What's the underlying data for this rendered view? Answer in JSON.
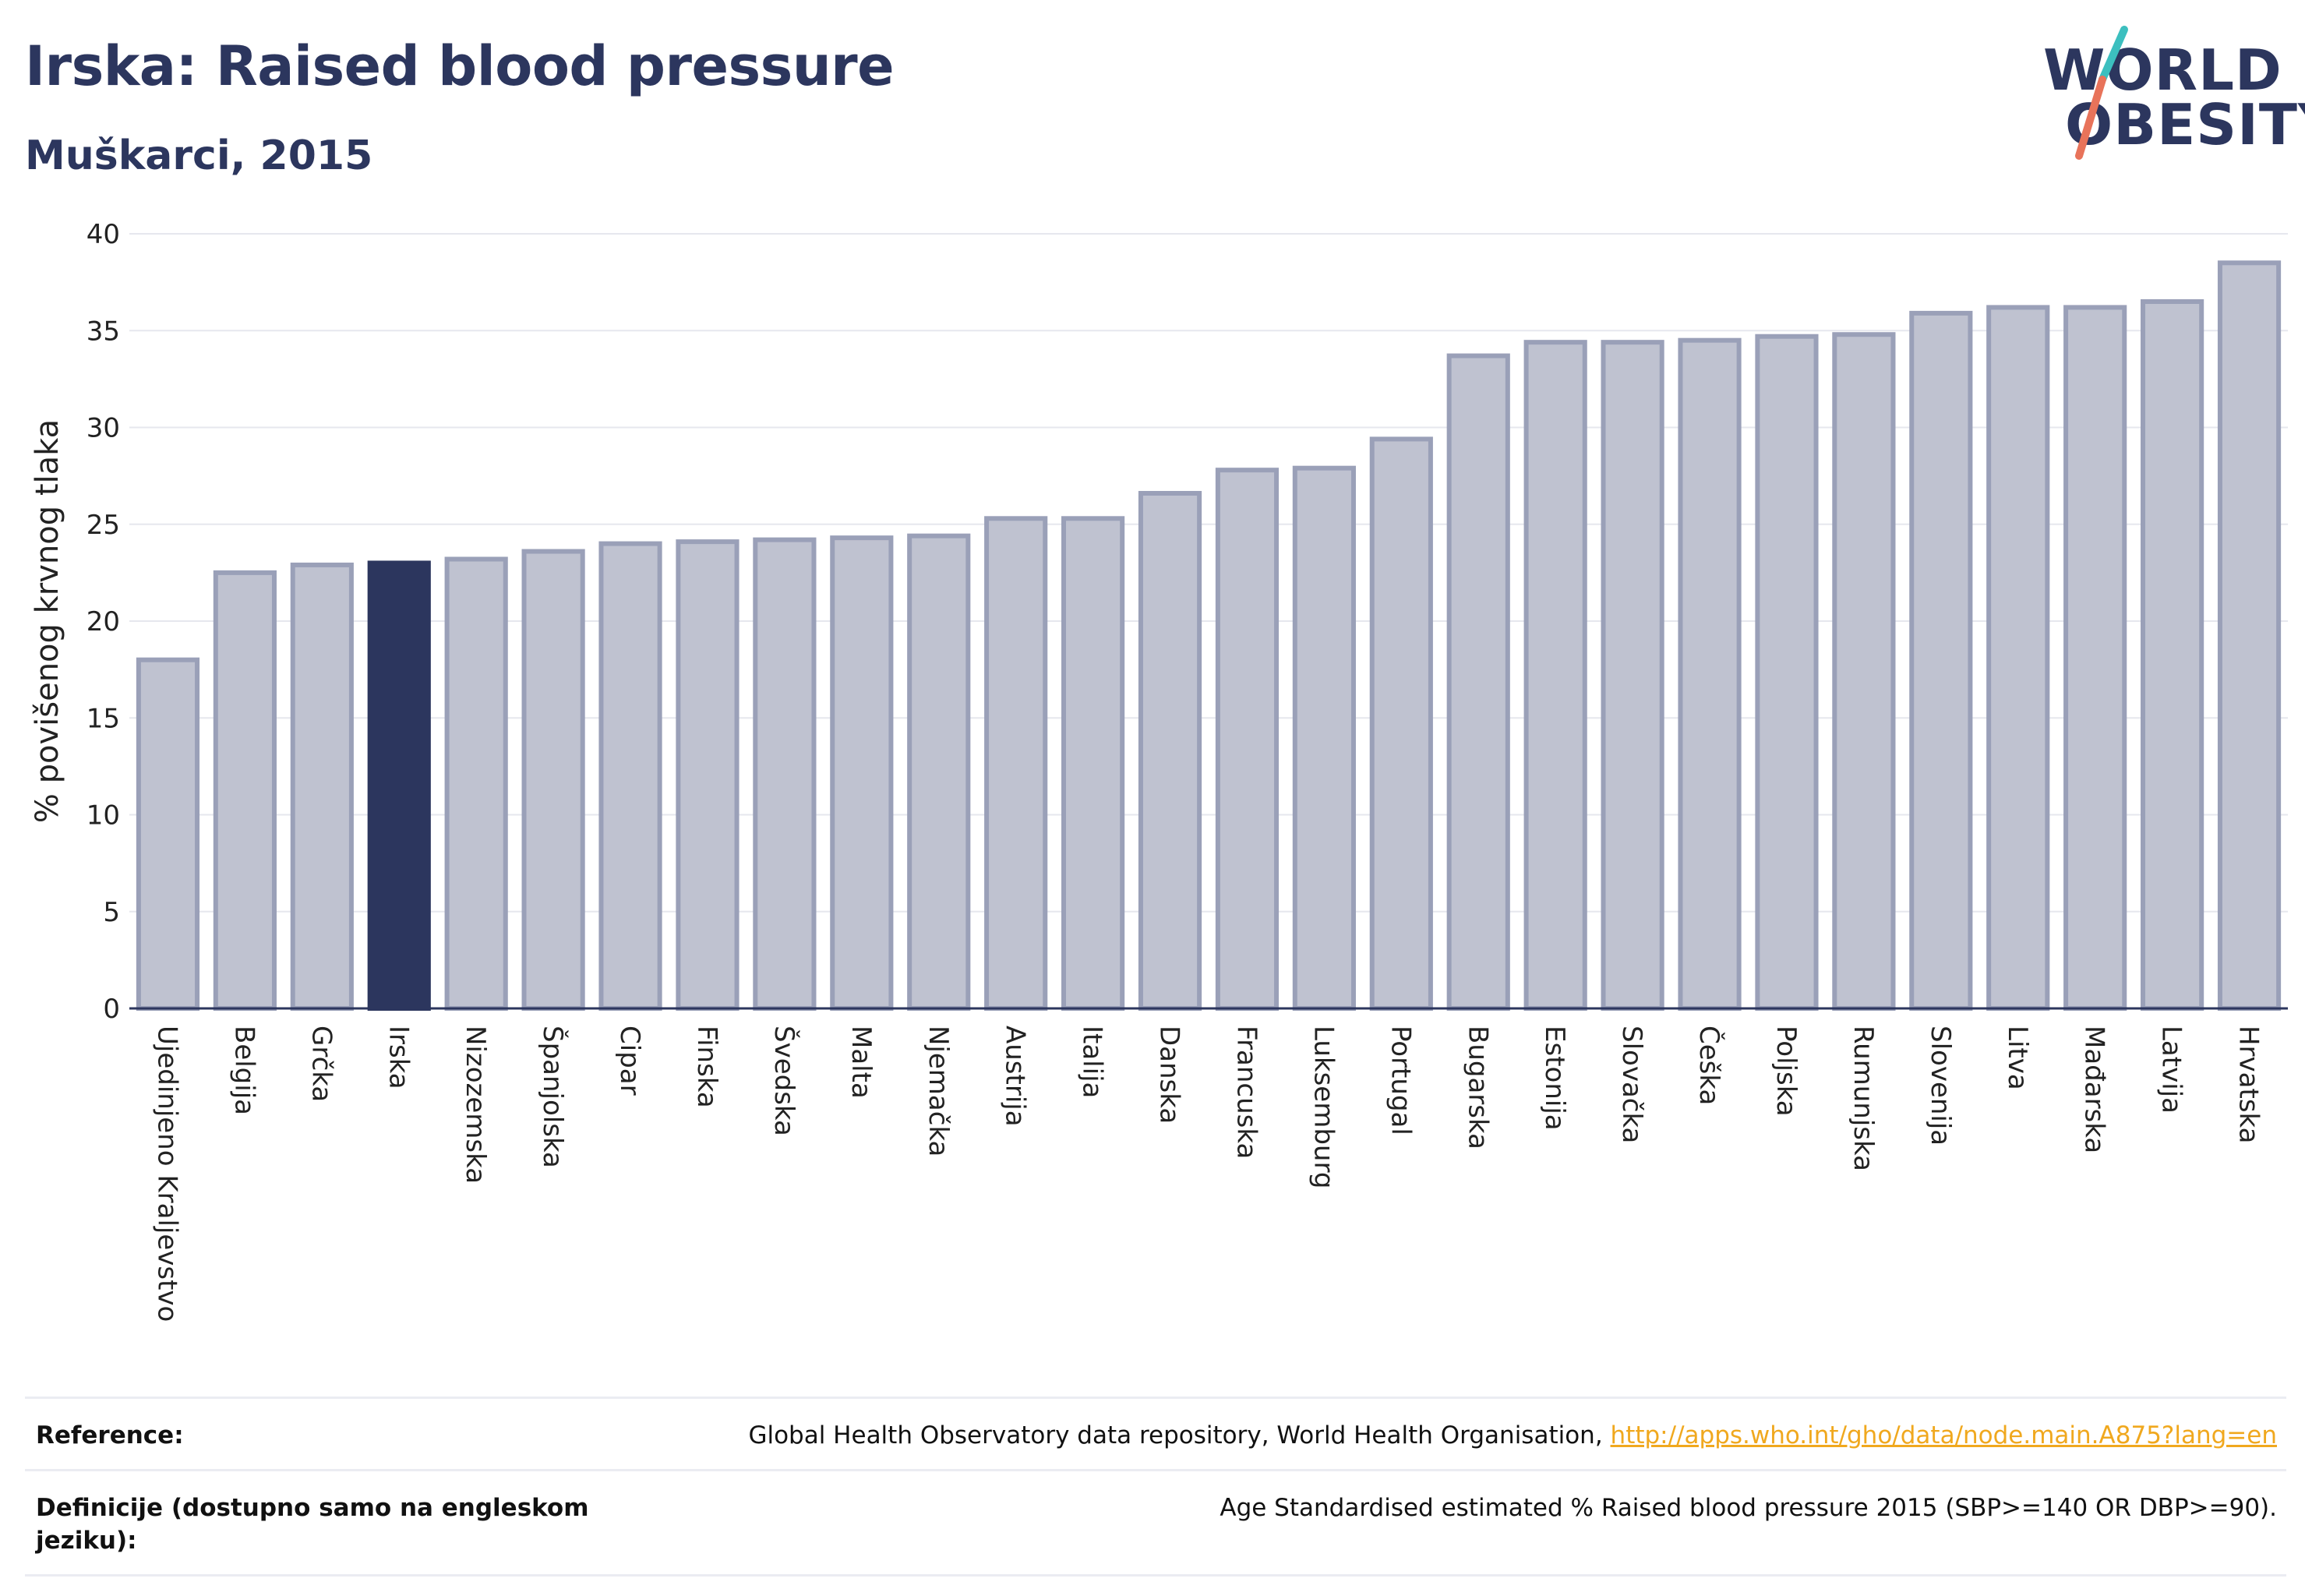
{
  "title": "Irska: Raised blood pressure",
  "subtitle": "Muškarci, 2015",
  "logo": {
    "line1": "WORLD",
    "line2": "OBESITY"
  },
  "chart_data": {
    "type": "bar",
    "ylabel": "% povišenog krvnog tlaka",
    "xlabel": "",
    "ylim": [
      0,
      40
    ],
    "yticks": [
      0,
      5,
      10,
      15,
      20,
      25,
      30,
      35,
      40
    ],
    "grid": true,
    "highlight": "Irska",
    "categories": [
      "Ujedinjeno Kraljevstvo",
      "Belgija",
      "Grčka",
      "Irska",
      "Nizozemska",
      "Španjolska",
      "Cipar",
      "Finska",
      "Švedska",
      "Malta",
      "Njemačka",
      "Austrija",
      "Italija",
      "Danska",
      "Francuska",
      "Luksemburg",
      "Portugal",
      "Bugarska",
      "Estonija",
      "Slovačka",
      "Češka",
      "Poljska",
      "Rumunjska",
      "Slovenija",
      "Litva",
      "Mađarska",
      "Latvija",
      "Hrvatska"
    ],
    "values": [
      18.0,
      22.5,
      22.9,
      23.0,
      23.2,
      23.6,
      24.0,
      24.1,
      24.2,
      24.3,
      24.4,
      25.3,
      25.3,
      26.6,
      27.8,
      27.9,
      29.4,
      33.7,
      34.4,
      34.4,
      34.5,
      34.7,
      34.8,
      35.9,
      36.2,
      36.2,
      36.5,
      38.5
    ]
  },
  "colors": {
    "bar": "#bfc2d0",
    "bar_stroke": "#9aa0b8",
    "highlight": "#2c365e",
    "grid": "#e6e7ee",
    "axis": "#2c365e",
    "logo_slash_teal": "#3cbfbf",
    "logo_slash_coral": "#e8735a",
    "link": "#f0a81e"
  },
  "footer": {
    "reference_label": "Reference:",
    "reference_text": "Global Health Observatory data repository, World Health Organisation, ",
    "reference_link": "http://apps.who.int/gho/data/node.main.A875?lang=en",
    "definition_label": "Definicije (dostupno samo na engleskom jeziku):",
    "definition_text": "Age Standardised estimated % Raised blood pressure 2015 (SBP>=140 OR DBP>=90)."
  }
}
